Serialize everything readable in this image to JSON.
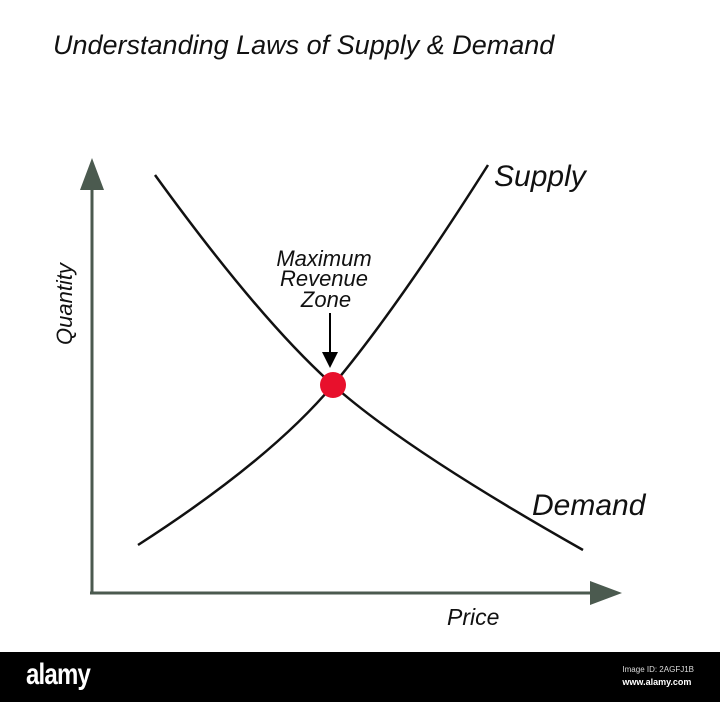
{
  "title": "Understanding Laws of Supply & Demand",
  "axes": {
    "y_label": "Quantity",
    "x_label": "Price",
    "color": "#4b5a4f"
  },
  "curves": {
    "supply_label": "Supply",
    "demand_label": "Demand"
  },
  "annotation": {
    "lines": [
      "Maximum",
      "Revenue",
      "Zone"
    ],
    "marker_color": "#e8102c"
  },
  "footer": {
    "logo": "alamy",
    "image_id": "Image ID: 2AGFJ1B",
    "url": "www.alamy.com"
  }
}
